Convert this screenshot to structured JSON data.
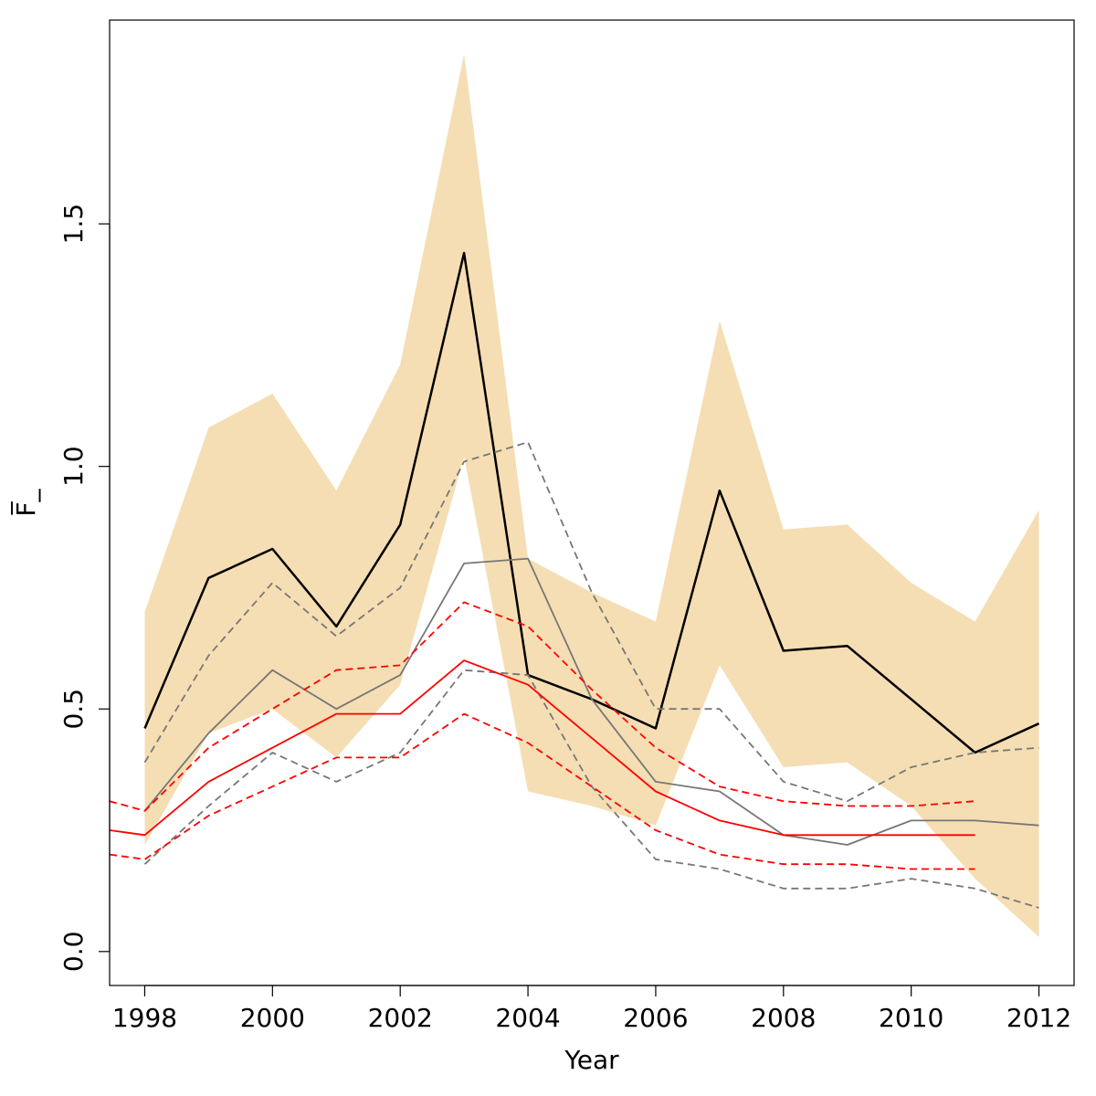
{
  "chart_data": {
    "type": "line",
    "title": "",
    "xlabel": "Year",
    "ylabel": "F̅_",
    "xlim": [
      1997.45,
      2012.55
    ],
    "ylim": [
      -0.07,
      1.92
    ],
    "x_ticks": [
      1998,
      2000,
      2002,
      2004,
      2006,
      2008,
      2010,
      2012
    ],
    "x_tick_labels": [
      "1998",
      "2000",
      "2002",
      "2004",
      "2006",
      "2008",
      "2010",
      "2012"
    ],
    "y_ticks": [
      0.0,
      0.5,
      1.0,
      1.5
    ],
    "y_tick_labels": [
      "0.0",
      "0.5",
      "1.0",
      "1.5"
    ],
    "grid": false,
    "legend": "none",
    "band": {
      "color": "#f5deb3",
      "x": [
        1998,
        1999,
        2000,
        2001,
        2002,
        2003,
        2004,
        2005,
        2006,
        2007,
        2008,
        2009,
        2010,
        2011,
        2012
      ],
      "lower": [
        0.22,
        0.45,
        0.5,
        0.4,
        0.55,
        1.02,
        0.33,
        0.3,
        0.26,
        0.59,
        0.38,
        0.39,
        0.3,
        0.15,
        0.03
      ],
      "upper": [
        0.7,
        1.08,
        1.15,
        0.95,
        1.21,
        1.85,
        0.81,
        0.74,
        0.68,
        1.3,
        0.87,
        0.88,
        0.76,
        0.68,
        0.91
      ]
    },
    "series": [
      {
        "color": "#000000",
        "dash": "solid",
        "width": 2.5,
        "x": [
          1998,
          1999,
          2000,
          2001,
          2002,
          2003,
          2004,
          2005,
          2006,
          2007,
          2008,
          2009,
          2010,
          2011,
          2012
        ],
        "values": [
          0.46,
          0.77,
          0.83,
          0.67,
          0.88,
          1.44,
          0.57,
          0.52,
          0.46,
          0.95,
          0.62,
          0.63,
          0.52,
          0.41,
          0.47
        ]
      },
      {
        "color": "#777777",
        "dash": "solid",
        "width": 1.8,
        "x": [
          1998,
          1999,
          2000,
          2001,
          2002,
          2003,
          2004,
          2005,
          2006,
          2007,
          2008,
          2009,
          2010,
          2011,
          2012
        ],
        "values": [
          0.29,
          0.45,
          0.58,
          0.5,
          0.57,
          0.8,
          0.81,
          0.52,
          0.35,
          0.33,
          0.24,
          0.22,
          0.27,
          0.27,
          0.26
        ]
      },
      {
        "color": "#777777",
        "dash": "dashed",
        "width": 1.8,
        "x": [
          1998,
          1999,
          2000,
          2001,
          2002,
          2003,
          2004,
          2005,
          2006,
          2007,
          2008,
          2009,
          2010,
          2011,
          2012
        ],
        "values": [
          0.39,
          0.61,
          0.76,
          0.65,
          0.75,
          1.01,
          1.05,
          0.74,
          0.5,
          0.5,
          0.35,
          0.31,
          0.38,
          0.41,
          0.42
        ]
      },
      {
        "color": "#777777",
        "dash": "dashed",
        "width": 1.8,
        "x": [
          1998,
          1999,
          2000,
          2001,
          2002,
          2003,
          2004,
          2005,
          2006,
          2007,
          2008,
          2009,
          2010,
          2011,
          2012
        ],
        "values": [
          0.18,
          0.3,
          0.41,
          0.35,
          0.41,
          0.58,
          0.57,
          0.34,
          0.19,
          0.17,
          0.13,
          0.13,
          0.15,
          0.13,
          0.09
        ]
      },
      {
        "color": "#ff0000",
        "dash": "solid",
        "width": 1.8,
        "x": [
          1997.45,
          1998,
          1999,
          2000,
          2001,
          2002,
          2003,
          2004,
          2005,
          2006,
          2007,
          2008,
          2009,
          2010,
          2011
        ],
        "values": [
          0.25,
          0.24,
          0.35,
          0.42,
          0.49,
          0.49,
          0.6,
          0.55,
          0.44,
          0.33,
          0.27,
          0.24,
          0.24,
          0.24,
          0.24
        ]
      },
      {
        "color": "#ff0000",
        "dash": "dashed",
        "width": 1.8,
        "x": [
          1997.45,
          1998,
          1999,
          2000,
          2001,
          2002,
          2003,
          2004,
          2005,
          2006,
          2007,
          2008,
          2009,
          2010,
          2011
        ],
        "values": [
          0.31,
          0.29,
          0.42,
          0.5,
          0.58,
          0.59,
          0.72,
          0.67,
          0.54,
          0.42,
          0.34,
          0.31,
          0.3,
          0.3,
          0.31
        ]
      },
      {
        "color": "#ff0000",
        "dash": "dashed",
        "width": 1.8,
        "x": [
          1997.45,
          1998,
          1999,
          2000,
          2001,
          2002,
          2003,
          2004,
          2005,
          2006,
          2007,
          2008,
          2009,
          2010,
          2011
        ],
        "values": [
          0.2,
          0.19,
          0.28,
          0.34,
          0.4,
          0.4,
          0.49,
          0.43,
          0.34,
          0.25,
          0.2,
          0.18,
          0.18,
          0.17,
          0.17
        ]
      }
    ]
  }
}
